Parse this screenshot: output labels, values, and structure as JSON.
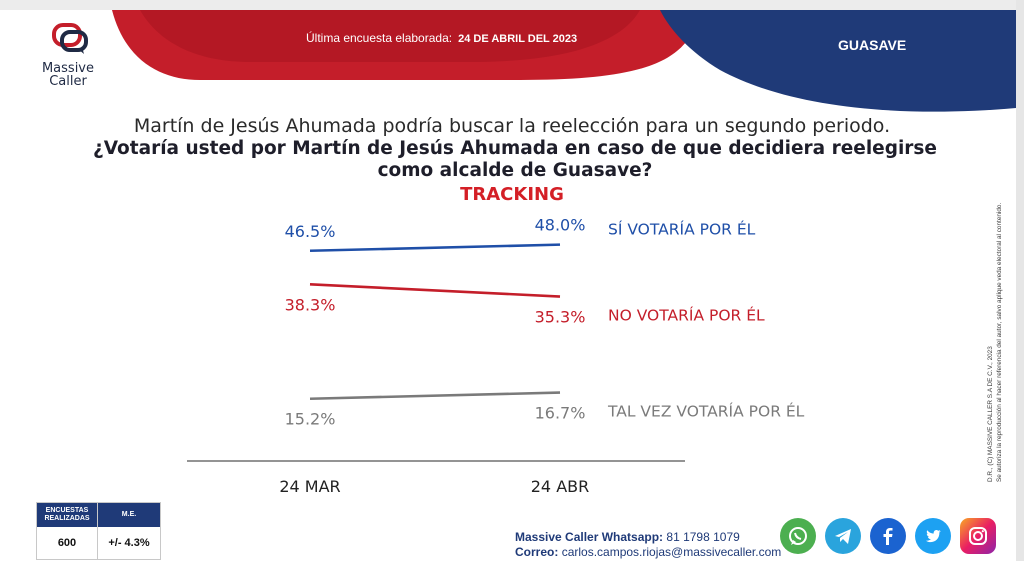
{
  "header": {
    "survey_label": "Última encuesta elaborada:",
    "survey_date": "24 DE ABRIL DEL 2023",
    "region": "GUASAVE",
    "brand": [
      "Massive",
      "Caller"
    ],
    "colors": {
      "red": "#c41e2a",
      "navy": "#1f3a78"
    }
  },
  "question": {
    "intro": "Martín de Jesús Ahumada podría buscar la reelección para un segundo periodo.",
    "main": "¿Votaría usted por Martín de Jesús Ahumada en caso de que decidiera reelegirse como alcalde de Guasave?",
    "subtitle": "TRACKING"
  },
  "chart_data": {
    "type": "line",
    "x": [
      "24 MAR",
      "24 ABR"
    ],
    "series": [
      {
        "name": "SÍ VOTARÍA POR ÉL",
        "values": [
          46.5,
          48.0
        ],
        "labels": [
          "46.5%",
          "48.0%"
        ],
        "color": "#1f4fa8"
      },
      {
        "name": "NO VOTARÍA POR ÉL",
        "values": [
          38.3,
          35.3
        ],
        "labels": [
          "38.3%",
          "35.3%"
        ],
        "color": "#c41e2a"
      },
      {
        "name": "TAL VEZ VOTARÍA POR ÉL",
        "values": [
          15.2,
          16.7
        ],
        "labels": [
          "15.2%",
          "16.7%"
        ],
        "color": "#7a7a7a"
      }
    ],
    "legend_position": "right",
    "grid": false
  },
  "sidebar": {
    "copyright": "D.R., (C) MASSIVE CALLER S.A DE C.V., 2023",
    "notice": "Se autoriza la reproducción al hacer referencia del autor, salvo aplique veda electoral al contenido."
  },
  "sample": {
    "col1_header": "ENCUESTAS REALIZADAS",
    "col2_header": "M.E.",
    "count": "600",
    "margin": "+/- 4.3%"
  },
  "contact": {
    "whatsapp_label": "Massive Caller Whatsapp:",
    "whatsapp_number": "81 1798 1079",
    "email_label": "Correo:",
    "email": "carlos.campos.riojas@massivecaller.com"
  },
  "social_icons": [
    "whatsapp-icon",
    "telegram-icon",
    "facebook-icon",
    "twitter-icon",
    "instagram-icon"
  ]
}
